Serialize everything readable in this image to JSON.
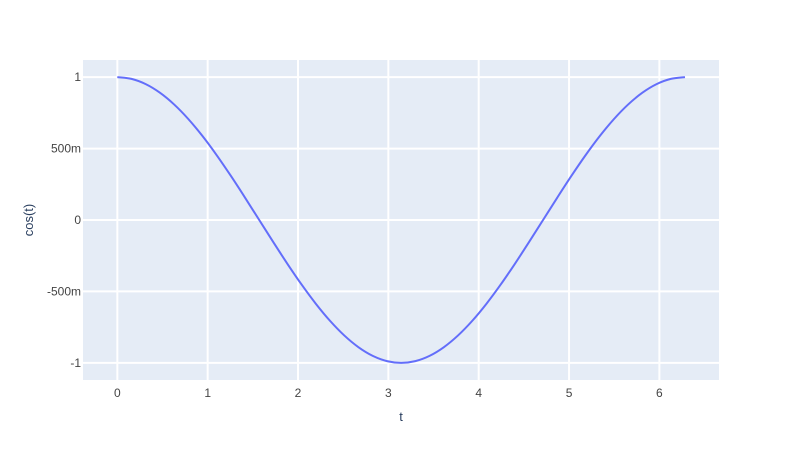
{
  "chart_data": {
    "type": "line",
    "xlabel": "t",
    "ylabel": "cos(t)",
    "xlim": [
      -0.38,
      6.66
    ],
    "ylim": [
      -1.12,
      1.12
    ],
    "grid": true,
    "background": "#e5ecf6",
    "line_color": "#636efa",
    "x_ticks": [
      {
        "v": 0,
        "label": "0"
      },
      {
        "v": 1,
        "label": "1"
      },
      {
        "v": 2,
        "label": "2"
      },
      {
        "v": 3,
        "label": "3"
      },
      {
        "v": 4,
        "label": "4"
      },
      {
        "v": 5,
        "label": "5"
      },
      {
        "v": 6,
        "label": "6"
      }
    ],
    "y_ticks": [
      {
        "v": 1,
        "label": "1"
      },
      {
        "v": 0.5,
        "label": "500m"
      },
      {
        "v": 0,
        "label": "0"
      },
      {
        "v": -0.5,
        "label": "-500m"
      },
      {
        "v": -1,
        "label": "-1"
      }
    ],
    "x": [
      0,
      0.1571,
      0.3142,
      0.4712,
      0.6283,
      0.7854,
      0.9425,
      1.0996,
      1.2566,
      1.4137,
      1.5708,
      1.7279,
      1.885,
      2.042,
      2.1991,
      2.3562,
      2.5133,
      2.6704,
      2.8274,
      2.9845,
      3.1416,
      3.2987,
      3.4558,
      3.6128,
      3.7699,
      3.927,
      4.0841,
      4.2412,
      4.3982,
      4.5553,
      4.7124,
      4.8695,
      5.0265,
      5.1836,
      5.3407,
      5.4978,
      5.6549,
      5.8119,
      5.969,
      6.1261,
      6.2832
    ],
    "y": [
      1,
      0.9877,
      0.9511,
      0.891,
      0.809,
      0.7071,
      0.5878,
      0.454,
      0.309,
      0.1564,
      0,
      -0.1564,
      -0.309,
      -0.454,
      -0.5878,
      -0.7071,
      -0.809,
      -0.891,
      -0.9511,
      -0.9877,
      -1,
      -0.9877,
      -0.9511,
      -0.891,
      -0.809,
      -0.7071,
      -0.5878,
      -0.454,
      -0.309,
      -0.1564,
      0,
      0.1564,
      0.309,
      0.454,
      0.5878,
      0.7071,
      0.809,
      0.891,
      0.9511,
      0.9877,
      1
    ]
  }
}
